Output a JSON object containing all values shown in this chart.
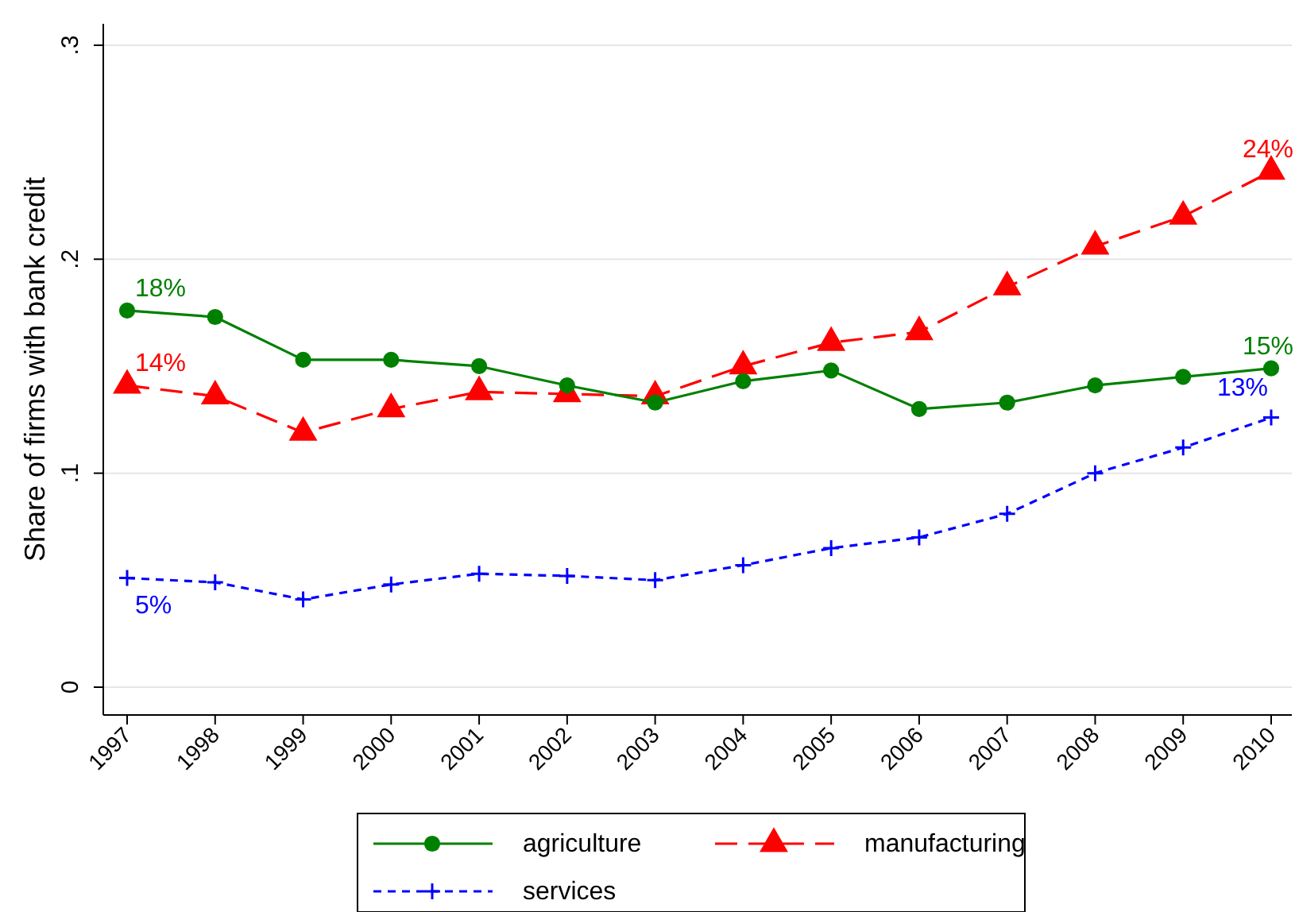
{
  "chart_data": {
    "type": "line",
    "ylabel": "Share of firms with bank credit",
    "categories": [
      "1997",
      "1998",
      "1999",
      "2000",
      "2001",
      "2002",
      "2003",
      "2004",
      "2005",
      "2006",
      "2007",
      "2008",
      "2009",
      "2010"
    ],
    "series": [
      {
        "name": "agriculture",
        "color": "#008000",
        "marker": "circle",
        "line_style": "solid",
        "values": [
          0.176,
          0.173,
          0.153,
          0.153,
          0.15,
          0.141,
          0.133,
          0.143,
          0.148,
          0.13,
          0.133,
          0.141,
          0.145,
          0.149
        ]
      },
      {
        "name": "manufacturing",
        "color": "#ff0000",
        "marker": "triangle",
        "line_style": "dashed",
        "values": [
          0.141,
          0.136,
          0.119,
          0.13,
          0.138,
          0.137,
          0.136,
          0.15,
          0.161,
          0.166,
          0.187,
          0.206,
          0.22,
          0.241
        ]
      },
      {
        "name": "services",
        "color": "#0000ff",
        "marker": "cross",
        "line_style": "dotted",
        "values": [
          0.051,
          0.049,
          0.041,
          0.048,
          0.053,
          0.052,
          0.05,
          0.057,
          0.065,
          0.07,
          0.081,
          0.1,
          0.112,
          0.126
        ]
      }
    ],
    "ylim": [
      -0.013,
      0.31
    ],
    "yticks": [
      {
        "value": 0,
        "label": "0"
      },
      {
        "value": 0.1,
        "label": ".1"
      },
      {
        "value": 0.2,
        "label": ".2"
      },
      {
        "value": 0.3,
        "label": ".3"
      }
    ],
    "grid": "y",
    "legend": "bottom",
    "annotations": [
      {
        "text": "18%",
        "x": "1997",
        "y": 0.176
      },
      {
        "text": "14%",
        "x": "1997",
        "y": 0.141
      },
      {
        "text": "5%",
        "x": "1997",
        "y": 0.051
      },
      {
        "text": "15%",
        "x": "2010",
        "y": 0.149
      },
      {
        "text": "24%",
        "x": "2010",
        "y": 0.241
      },
      {
        "text": "13%",
        "x": "2010",
        "y": 0.126
      }
    ]
  }
}
